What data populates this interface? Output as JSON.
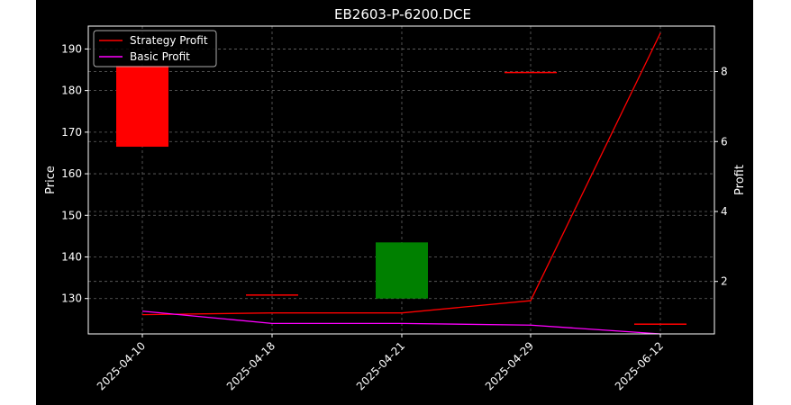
{
  "chart_data": {
    "type": "line",
    "title": "EB2603-P-6200.DCE",
    "xlabel": "",
    "ylabel": "Price",
    "y2label": "Profit",
    "categories": [
      "2025-04-10",
      "2025-04-18",
      "2025-04-21",
      "2025-04-29",
      "2025-06-12"
    ],
    "ylim": [
      121.5,
      195.5
    ],
    "y2lim": [
      0.5,
      9.3
    ],
    "yticks": [
      130,
      140,
      150,
      160,
      170,
      180,
      190
    ],
    "y2ticks": [
      2,
      4,
      6,
      8
    ],
    "grid": true,
    "legend": "top-left",
    "candles": [
      {
        "date": "2025-04-10",
        "open": 186,
        "close": 166.5,
        "color": "#ff0000"
      },
      {
        "date": "2025-04-18",
        "open": 131,
        "close": 131,
        "color": "#ff0000"
      },
      {
        "date": "2025-04-21",
        "open": 130,
        "close": 143.5,
        "color": "#008000"
      },
      {
        "date": "2025-04-29",
        "open": 184.5,
        "close": 184.5,
        "color": "#ff0000"
      },
      {
        "date": "2025-06-12",
        "open": 124,
        "close": 124,
        "color": "#ff0000"
      }
    ],
    "series": [
      {
        "name": "Strategy Profit",
        "axis": "right",
        "color": "#ff0000",
        "values": [
          1.05,
          1.1,
          1.1,
          1.45,
          9.1
        ]
      },
      {
        "name": "Basic Profit",
        "axis": "right",
        "color": "#ff00ff",
        "values": [
          1.15,
          0.8,
          0.8,
          0.75,
          0.5
        ]
      }
    ]
  }
}
